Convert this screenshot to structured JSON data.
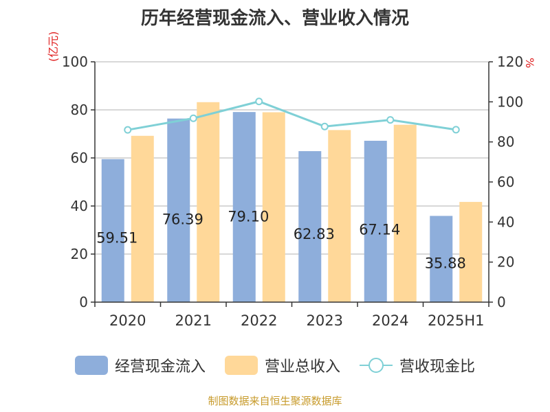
{
  "title": "历年经营现金流入、营业收入情况",
  "left_unit": "(亿元)",
  "right_unit": "%",
  "source": "制图数据来自恒生聚源数据库",
  "colors": {
    "cash_inflow": "#8eaedb",
    "revenue": "#ffd899",
    "ratio": "#7fd0d6",
    "grid": "#cccccc",
    "axis": "#333333",
    "unit": "#e02020"
  },
  "chart_data": {
    "type": "bar",
    "title": "历年经营现金流入、营业收入情况",
    "categories": [
      "2020",
      "2021",
      "2022",
      "2023",
      "2024",
      "2025H1"
    ],
    "y_left": {
      "ylim": [
        0,
        100
      ],
      "ticks": [
        "0",
        "20",
        "40",
        "60",
        "80",
        "100"
      ],
      "label": "(亿元)"
    },
    "y_right": {
      "ylim": [
        0,
        120
      ],
      "ticks": [
        "0",
        "20",
        "40",
        "60",
        "80",
        "100",
        "120"
      ],
      "label": "%"
    },
    "grid": true,
    "legend_position": "bottom",
    "series": [
      {
        "name": "经营现金流入",
        "type": "bar",
        "axis": "left",
        "values": [
          59.51,
          76.39,
          79.1,
          62.83,
          67.14,
          35.88
        ],
        "labels": [
          "59.51",
          "76.39",
          "79.10",
          "62.83",
          "67.14",
          "35.88"
        ]
      },
      {
        "name": "营业总收入",
        "type": "bar",
        "axis": "left",
        "values": [
          69.2,
          83.2,
          79.0,
          71.6,
          73.8,
          41.7
        ]
      },
      {
        "name": "营收现金比",
        "type": "line",
        "axis": "right",
        "values": [
          86.0,
          91.8,
          100.2,
          87.7,
          91.0,
          86.1
        ]
      }
    ]
  }
}
